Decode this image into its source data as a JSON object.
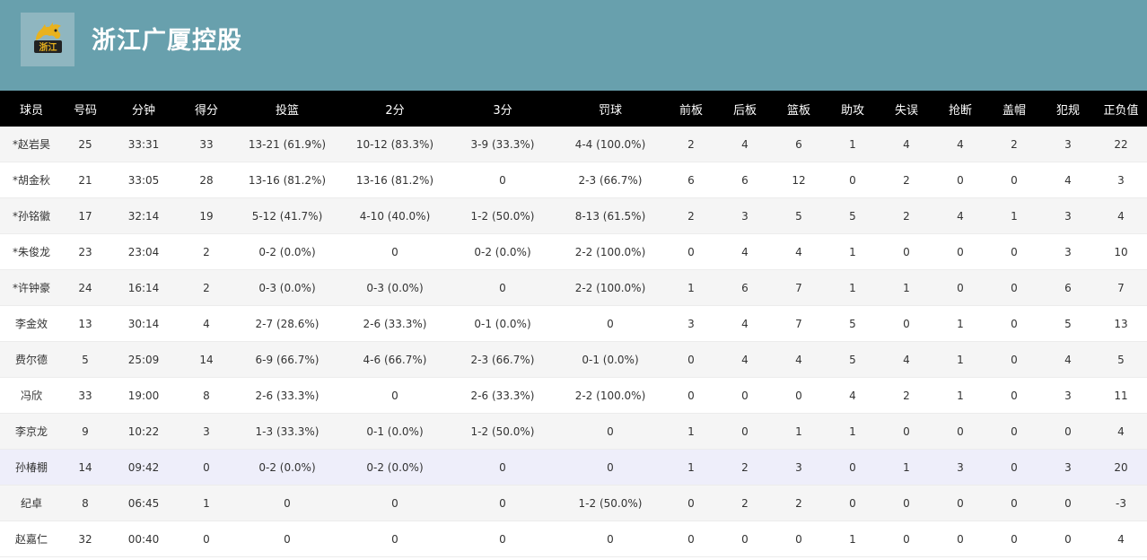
{
  "team": {
    "name": "浙江广厦控股",
    "logo_text": "浙江"
  },
  "columns": [
    "球员",
    "号码",
    "分钟",
    "得分",
    "投篮",
    "2分",
    "3分",
    "罚球",
    "前板",
    "后板",
    "篮板",
    "助攻",
    "失误",
    "抢断",
    "盖帽",
    "犯规",
    "正负值"
  ],
  "rows": [
    [
      "*赵岩昊",
      "25",
      "33:31",
      "33",
      "13-21 (61.9%)",
      "10-12 (83.3%)",
      "3-9 (33.3%)",
      "4-4 (100.0%)",
      "2",
      "4",
      "6",
      "1",
      "4",
      "4",
      "2",
      "3",
      "22"
    ],
    [
      "*胡金秋",
      "21",
      "33:05",
      "28",
      "13-16 (81.2%)",
      "13-16 (81.2%)",
      "0",
      "2-3 (66.7%)",
      "6",
      "6",
      "12",
      "0",
      "2",
      "0",
      "0",
      "4",
      "3"
    ],
    [
      "*孙铭徽",
      "17",
      "32:14",
      "19",
      "5-12 (41.7%)",
      "4-10 (40.0%)",
      "1-2 (50.0%)",
      "8-13 (61.5%)",
      "2",
      "3",
      "5",
      "5",
      "2",
      "4",
      "1",
      "3",
      "4"
    ],
    [
      "*朱俊龙",
      "23",
      "23:04",
      "2",
      "0-2 (0.0%)",
      "0",
      "0-2 (0.0%)",
      "2-2 (100.0%)",
      "0",
      "4",
      "4",
      "1",
      "0",
      "0",
      "0",
      "3",
      "10"
    ],
    [
      "*许钟豪",
      "24",
      "16:14",
      "2",
      "0-3 (0.0%)",
      "0-3 (0.0%)",
      "0",
      "2-2 (100.0%)",
      "1",
      "6",
      "7",
      "1",
      "1",
      "0",
      "0",
      "6",
      "7"
    ],
    [
      "李金效",
      "13",
      "30:14",
      "4",
      "2-7 (28.6%)",
      "2-6 (33.3%)",
      "0-1 (0.0%)",
      "0",
      "3",
      "4",
      "7",
      "5",
      "0",
      "1",
      "0",
      "5",
      "13"
    ],
    [
      "费尔德",
      "5",
      "25:09",
      "14",
      "6-9 (66.7%)",
      "4-6 (66.7%)",
      "2-3 (66.7%)",
      "0-1 (0.0%)",
      "0",
      "4",
      "4",
      "5",
      "4",
      "1",
      "0",
      "4",
      "5"
    ],
    [
      "冯欣",
      "33",
      "19:00",
      "8",
      "2-6 (33.3%)",
      "0",
      "2-6 (33.3%)",
      "2-2 (100.0%)",
      "0",
      "0",
      "0",
      "4",
      "2",
      "1",
      "0",
      "3",
      "11"
    ],
    [
      "李京龙",
      "9",
      "10:22",
      "3",
      "1-3 (33.3%)",
      "0-1 (0.0%)",
      "1-2 (50.0%)",
      "0",
      "1",
      "0",
      "1",
      "1",
      "0",
      "0",
      "0",
      "0",
      "4"
    ],
    [
      "孙椿棚",
      "14",
      "09:42",
      "0",
      "0-2 (0.0%)",
      "0-2 (0.0%)",
      "0",
      "0",
      "1",
      "2",
      "3",
      "0",
      "1",
      "3",
      "0",
      "3",
      "20"
    ],
    [
      "纪卓",
      "8",
      "06:45",
      "1",
      "0",
      "0",
      "0",
      "1-2 (50.0%)",
      "0",
      "2",
      "2",
      "0",
      "0",
      "0",
      "0",
      "0",
      "-3"
    ],
    [
      "赵嘉仁",
      "32",
      "00:40",
      "0",
      "0",
      "0",
      "0",
      "0",
      "0",
      "0",
      "0",
      "1",
      "0",
      "0",
      "0",
      "0",
      "4"
    ]
  ],
  "highlight_row": 9,
  "colors": {
    "header_bg": "#68a0ad",
    "table_header_bg": "#000000",
    "highlight_row": "#eeeefa",
    "logo_gold": "#e8b21e"
  },
  "icons": {
    "logo": "golden-lion-logo"
  }
}
